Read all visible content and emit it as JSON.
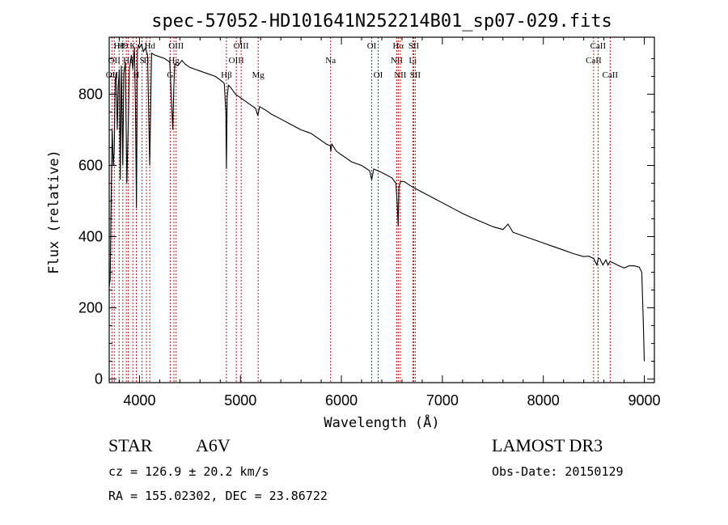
{
  "chart_data": {
    "type": "line",
    "title": "spec-57052-HD101641N252214B01_sp07-029.fits",
    "xlabel": "Wavelength (Å)",
    "ylabel": "Flux (relative)",
    "xlim": [
      3700,
      9100
    ],
    "ylim": [
      -10,
      960
    ],
    "xticks": [
      4000,
      5000,
      6000,
      7000,
      8000,
      9000
    ],
    "yticks": [
      0,
      200,
      400,
      600,
      800
    ],
    "grid": false,
    "series": [
      {
        "name": "spectrum",
        "color": "#000000",
        "x": [
          3700,
          3710,
          3720,
          3730,
          3740,
          3750,
          3760,
          3770,
          3780,
          3790,
          3800,
          3810,
          3820,
          3835,
          3845,
          3860,
          3875,
          3889,
          3900,
          3920,
          3935,
          3950,
          3960,
          3970,
          3980,
          3990,
          4000,
          4020,
          4040,
          4060,
          4080,
          4101,
          4120,
          4150,
          4200,
          4250,
          4300,
          4330,
          4340,
          4350,
          4380,
          4420,
          4450,
          4500,
          4550,
          4600,
          4650,
          4700,
          4750,
          4800,
          4840,
          4855,
          4861,
          4868,
          4880,
          4900,
          4950,
          5000,
          5050,
          5100,
          5150,
          5172,
          5190,
          5250,
          5300,
          5400,
          5500,
          5600,
          5700,
          5800,
          5850,
          5890,
          5896,
          5905,
          5950,
          6000,
          6100,
          6200,
          6280,
          6300,
          6320,
          6400,
          6500,
          6540,
          6555,
          6563,
          6570,
          6585,
          6620,
          6700,
          6800,
          6900,
          7000,
          7100,
          7200,
          7300,
          7400,
          7500,
          7600,
          7650,
          7700,
          7800,
          7900,
          8000,
          8100,
          8200,
          8300,
          8400,
          8450,
          8500,
          8530,
          8545,
          8560,
          8590,
          8620,
          8640,
          8660,
          8680,
          8700,
          8750,
          8800,
          8850,
          8900,
          8950,
          8975,
          8990,
          9000
        ],
        "values": [
          260,
          280,
          520,
          700,
          600,
          640,
          840,
          860,
          700,
          820,
          870,
          560,
          880,
          600,
          860,
          890,
          550,
          720,
          870,
          910,
          870,
          930,
          760,
          480,
          920,
          940,
          930,
          940,
          920,
          930,
          910,
          600,
          915,
          910,
          905,
          900,
          890,
          700,
          820,
          885,
          880,
          895,
          885,
          875,
          870,
          865,
          860,
          855,
          850,
          840,
          830,
          750,
          590,
          790,
          825,
          820,
          800,
          790,
          780,
          770,
          760,
          740,
          765,
          755,
          745,
          730,
          715,
          700,
          690,
          670,
          660,
          655,
          640,
          660,
          640,
          630,
          610,
          600,
          585,
          560,
          590,
          580,
          565,
          550,
          480,
          430,
          540,
          555,
          555,
          540,
          525,
          510,
          495,
          480,
          465,
          452,
          440,
          428,
          420,
          435,
          412,
          402,
          392,
          382,
          372,
          362,
          352,
          344,
          345,
          338,
          320,
          340,
          338,
          320,
          335,
          320,
          330,
          328,
          325,
          318,
          312,
          318,
          318,
          314,
          300,
          160,
          50
        ]
      }
    ],
    "line_markers": [
      {
        "wavelength": 3727,
        "label": "OII",
        "row": 3
      },
      {
        "wavelength": 3750,
        "label": "OII",
        "row": 2
      },
      {
        "wavelength": 3798,
        "label": "H8",
        "row": 1
      },
      {
        "wavelength": 3835,
        "label": "H9",
        "row": 1
      },
      {
        "wavelength": 3869,
        "label": "",
        "row": 2
      },
      {
        "wavelength": 3889,
        "label": "He",
        "row": 2
      },
      {
        "wavelength": 3934,
        "label": "K",
        "row": 1
      },
      {
        "wavelength": 3968,
        "label": "H",
        "row": 3
      },
      {
        "wavelength": 4026,
        "label": "S",
        "row": 2
      },
      {
        "wavelength": 4069,
        "label": "II",
        "row": 2
      },
      {
        "wavelength": 4102,
        "label": "Hd",
        "row": 1
      },
      {
        "wavelength": 4304,
        "label": "G",
        "row": 3
      },
      {
        "wavelength": 4341,
        "label": "Hg",
        "row": 2
      },
      {
        "wavelength": 4363,
        "label": "OIII",
        "row": 1
      },
      {
        "wavelength": 4861,
        "label": "Hβ",
        "row": 3
      },
      {
        "wavelength": 4959,
        "label": "OIII",
        "row": 2
      },
      {
        "wavelength": 5007,
        "label": "OIII",
        "row": 1
      },
      {
        "wavelength": 5175,
        "label": "Mg",
        "row": 3
      },
      {
        "wavelength": 5893,
        "label": "Na",
        "row": 2
      },
      {
        "wavelength": 6300,
        "label": "OI",
        "row": 1
      },
      {
        "wavelength": 6364,
        "label": "OI",
        "row": 3
      },
      {
        "wavelength": 6548,
        "label": "NII",
        "row": 2
      },
      {
        "wavelength": 6563,
        "label": "Hα",
        "row": 1
      },
      {
        "wavelength": 6583,
        "label": "NII",
        "row": 3
      },
      {
        "wavelength": 6707,
        "label": "Li",
        "row": 2
      },
      {
        "wavelength": 6716,
        "label": "SII",
        "row": 1
      },
      {
        "wavelength": 6731,
        "label": "SII",
        "row": 3
      },
      {
        "wavelength": 8498,
        "label": "CaII",
        "row": 2
      },
      {
        "wavelength": 8542,
        "label": "CaII",
        "row": 1
      },
      {
        "wavelength": 8662,
        "label": "CaII",
        "row": 3
      }
    ],
    "annotations": {
      "class_label": "STAR",
      "subclass": "A6V",
      "survey": "LAMOST DR3",
      "redshift_text": "cz = 126.9 ± 20.2 km/s",
      "obs_date": "Obs-Date: 20150129",
      "coords": "RA = 155.02302, DEC =  23.86722"
    }
  }
}
